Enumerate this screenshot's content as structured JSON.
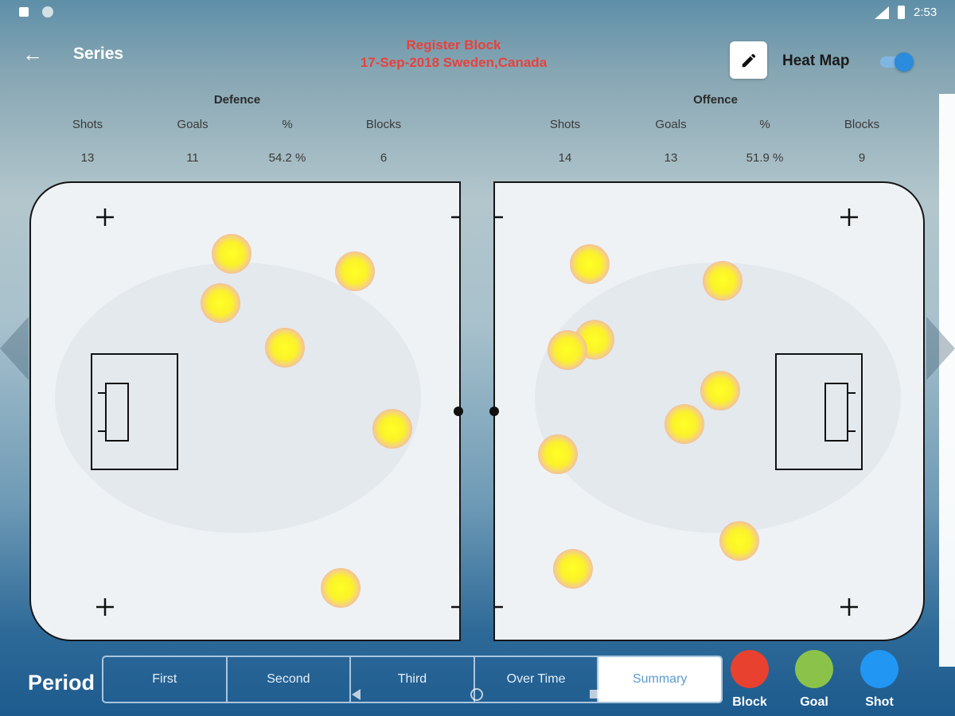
{
  "status_bar": {
    "time": "2:53"
  },
  "header": {
    "back_icon": "arrow-left-icon",
    "series_label": "Series",
    "title_line1": "Register Block",
    "title_line2": "17-Sep-2018 Sweden,Canada",
    "edit_icon": "pencil-icon",
    "heat_map_label": "Heat Map",
    "heat_map_toggle_on": true
  },
  "defence": {
    "heading": "Defence",
    "columns": [
      "Shots",
      "Goals",
      "%",
      "Blocks"
    ],
    "values": [
      "13",
      "11",
      "54.2 %",
      "6"
    ]
  },
  "offence": {
    "heading": "Offence",
    "columns": [
      "Shots",
      "Goals",
      "%",
      "Blocks"
    ],
    "values": [
      "14",
      "13",
      "51.9 %",
      "9"
    ]
  },
  "period": {
    "label": "Period",
    "options": [
      "First",
      "Second",
      "Third",
      "Over Time",
      "Summary"
    ],
    "selected": "Summary"
  },
  "legend": [
    {
      "label": "Block",
      "color": "#e8412f"
    },
    {
      "label": "Goal",
      "color": "#8bc34a"
    },
    {
      "label": "Shot",
      "color": "#2196f3"
    }
  ],
  "colors": {
    "title_red": "#e8413c",
    "heat_core": "#ffff26",
    "toggle_blue": "#2b8bdc"
  }
}
